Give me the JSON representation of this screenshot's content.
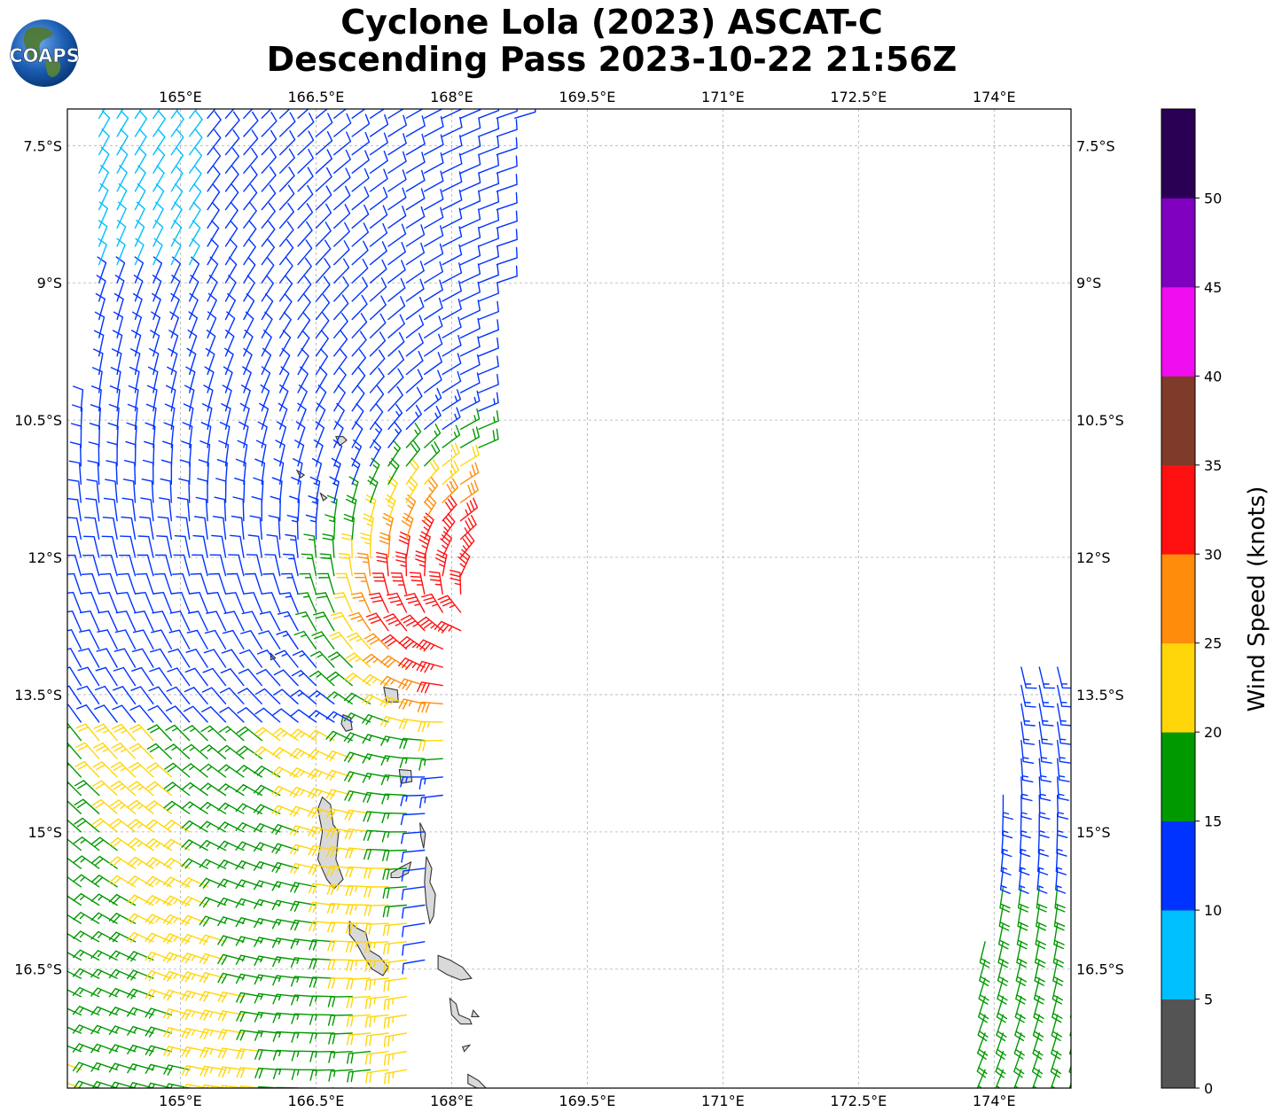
{
  "title": {
    "line1": "Cyclone Lola (2023) ASCAT-C",
    "line2": "Descending Pass 2023-10-22 21:56Z"
  },
  "logo": {
    "text": "COAPS",
    "icon": "globe-logo-icon"
  },
  "map": {
    "lon_ticks": [
      "165°E",
      "166.5°E",
      "168°E",
      "169.5°E",
      "171°E",
      "172.5°E",
      "174°E"
    ],
    "lat_ticks": [
      "7.5°S",
      "9°S",
      "10.5°S",
      "12°S",
      "13.5°S",
      "15°S",
      "16.5°S"
    ],
    "lon_range": [
      163.75,
      174.85
    ],
    "lat_range": [
      -17.8,
      -7.1
    ],
    "gridlines": true,
    "land_color": "#d9d9d9",
    "coast_color": "#333333"
  },
  "colorbar": {
    "label": "Wind Speed (knots)",
    "tick_labels": [
      "0",
      "5",
      "10",
      "15",
      "20",
      "25",
      "30",
      "35",
      "40",
      "45",
      "50"
    ],
    "bins": [
      {
        "min": 0,
        "max": 5,
        "color": "#545454"
      },
      {
        "min": 5,
        "max": 10,
        "color": "#00bfff"
      },
      {
        "min": 10,
        "max": 15,
        "color": "#0033ff"
      },
      {
        "min": 15,
        "max": 20,
        "color": "#009900"
      },
      {
        "min": 20,
        "max": 25,
        "color": "#ffd60a"
      },
      {
        "min": 25,
        "max": 30,
        "color": "#ff8c0a"
      },
      {
        "min": 30,
        "max": 35,
        "color": "#ff1010"
      },
      {
        "min": 35,
        "max": 40,
        "color": "#7f3a2a"
      },
      {
        "min": 40,
        "max": 45,
        "color": "#f00ef0"
      },
      {
        "min": 45,
        "max": 50,
        "color": "#8000c0"
      },
      {
        "min": 50,
        "max": 55,
        "color": "#2a0055"
      }
    ]
  }
}
